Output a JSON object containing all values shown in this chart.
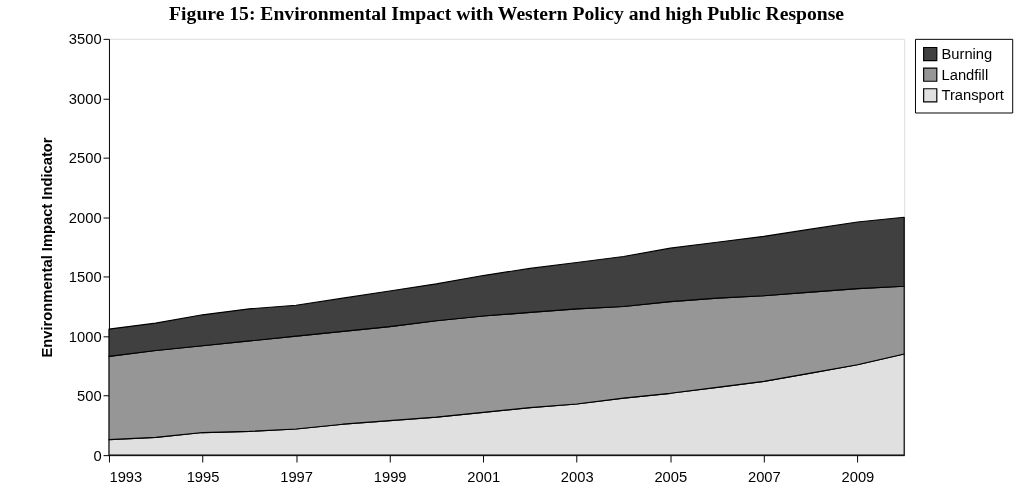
{
  "chart_data": {
    "type": "area",
    "title": "Figure 15:    Environmental Impact with Western Policy and high Public Response",
    "ylabel": "Environmental Impact Indicator",
    "x": [
      1993,
      1994,
      1995,
      1996,
      1997,
      1998,
      1999,
      2000,
      2001,
      2002,
      2003,
      2004,
      2005,
      2006,
      2007,
      2008,
      2009,
      2010
    ],
    "stacked": true,
    "series": [
      {
        "name": "Transport",
        "color": "#e0e0e0",
        "values": [
          130,
          150,
          190,
          200,
          220,
          260,
          290,
          320,
          360,
          400,
          430,
          480,
          520,
          570,
          620,
          690,
          760,
          850
        ]
      },
      {
        "name": "Landfill",
        "color": "#969696",
        "values": [
          700,
          730,
          730,
          760,
          780,
          780,
          790,
          810,
          810,
          800,
          800,
          770,
          770,
          750,
          720,
          680,
          640,
          570
        ]
      },
      {
        "name": "Burning",
        "color": "#404040",
        "values": [
          230,
          230,
          260,
          270,
          260,
          280,
          300,
          310,
          340,
          370,
          390,
          420,
          450,
          470,
          500,
          530,
          560,
          580
        ]
      }
    ],
    "xlim": [
      1993,
      2010
    ],
    "xticks": [
      1993,
      1995,
      1997,
      1999,
      2001,
      2003,
      2005,
      2007,
      2009
    ],
    "ylim": [
      0,
      3500
    ],
    "yticks": [
      0,
      500,
      1000,
      1500,
      2000,
      2500,
      3000,
      3500
    ],
    "grid": false,
    "legend": "right"
  }
}
